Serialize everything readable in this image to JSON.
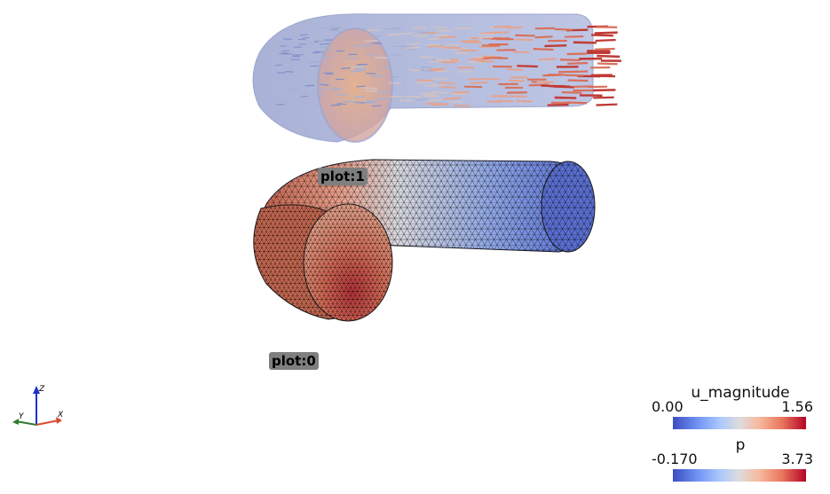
{
  "plot_labels": {
    "top": "plot:1",
    "bottom": "plot:0"
  },
  "colorbars": [
    {
      "title": "u_magnitude",
      "min": "0.00",
      "max": "1.56"
    },
    {
      "title": "p",
      "min": "-0.170",
      "max": "3.73"
    }
  ],
  "axes": {
    "x": "X",
    "y": "Y",
    "z": "Z"
  },
  "colors": {
    "cool": "#3b4cc0",
    "neutral": "#dddcdc",
    "warm": "#b40426",
    "label_bg": "#7f7f7f"
  }
}
